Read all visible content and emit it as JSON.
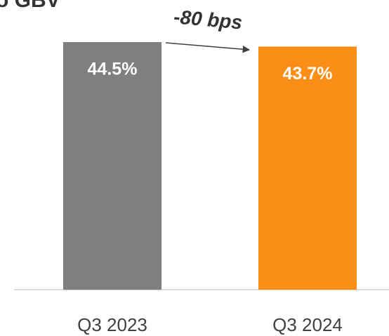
{
  "chart_data": {
    "type": "bar",
    "title": "o GBV",
    "categories": [
      "Q3 2023",
      "Q3 2024"
    ],
    "values": [
      44.5,
      43.7
    ],
    "value_labels": [
      "44.5%",
      "43.7%"
    ],
    "colors": [
      "#7f7f7f",
      "#fa8e16"
    ],
    "ylim": [
      0,
      50
    ],
    "annotation": "-80 bps"
  }
}
